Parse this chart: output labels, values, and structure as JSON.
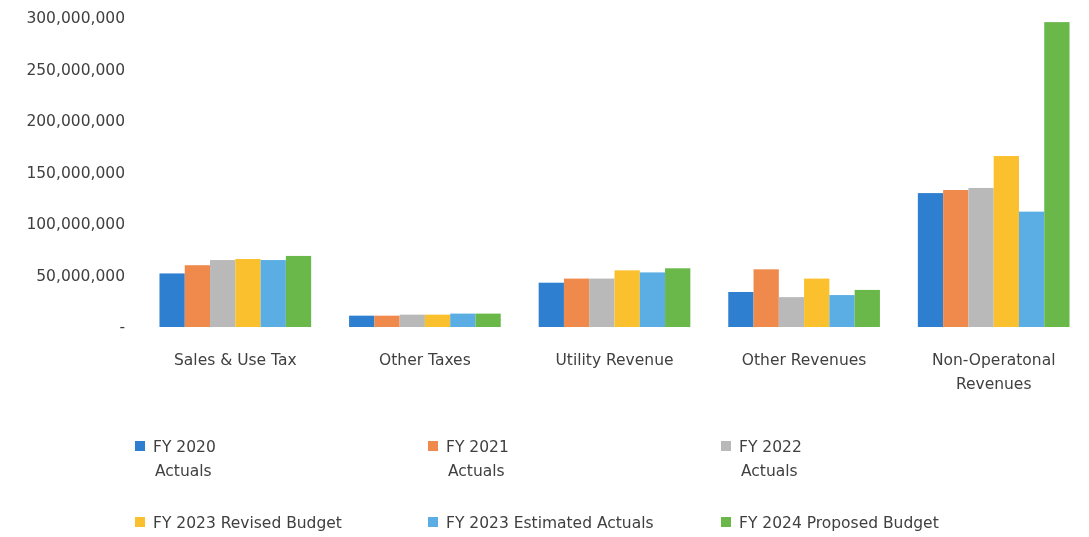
{
  "chart_data": {
    "type": "bar",
    "categories": [
      "Sales & Use Tax",
      "Other Taxes",
      "Utility Revenue",
      "Other Revenues",
      "Non-Operatonal Revenues"
    ],
    "series": [
      {
        "name": "FY 2020 Actuals",
        "color": "#2e7fd0",
        "values": [
          52000000,
          11000000,
          43000000,
          34000000,
          130000000
        ]
      },
      {
        "name": "FY 2021 Actuals",
        "color": "#ef8a4c",
        "values": [
          60000000,
          11000000,
          47000000,
          56000000,
          133000000
        ]
      },
      {
        "name": "FY 2022 Actuals",
        "color": "#b9b9b9",
        "values": [
          65000000,
          12000000,
          47000000,
          29000000,
          135000000
        ]
      },
      {
        "name": "FY 2023 Revised Budget",
        "color": "#fbc02d",
        "values": [
          66000000,
          12000000,
          55000000,
          47000000,
          166000000
        ]
      },
      {
        "name": "FY 2023 Estimated Actuals",
        "color": "#5aaee3",
        "values": [
          65000000,
          13000000,
          53000000,
          31000000,
          112000000
        ]
      },
      {
        "name": "FY 2024 Proposed Budget",
        "color": "#6ab84a",
        "values": [
          69000000,
          13000000,
          57000000,
          36000000,
          296000000
        ]
      }
    ],
    "ylim": [
      0,
      300000000
    ],
    "yticks": [
      {
        "value": 0,
        "label": "-"
      },
      {
        "value": 300000000,
        "label": "300,000,000"
      },
      {
        "value": 250000000,
        "label": "250,000,000"
      },
      {
        "value": 200000000,
        "label": "200,000,000"
      },
      {
        "value": 150000000,
        "label": "150,000,000"
      },
      {
        "value": 100000000,
        "label": "100,000,000"
      },
      {
        "value": 50000000,
        "label": "50,000,000"
      }
    ],
    "legend": "bottom"
  }
}
